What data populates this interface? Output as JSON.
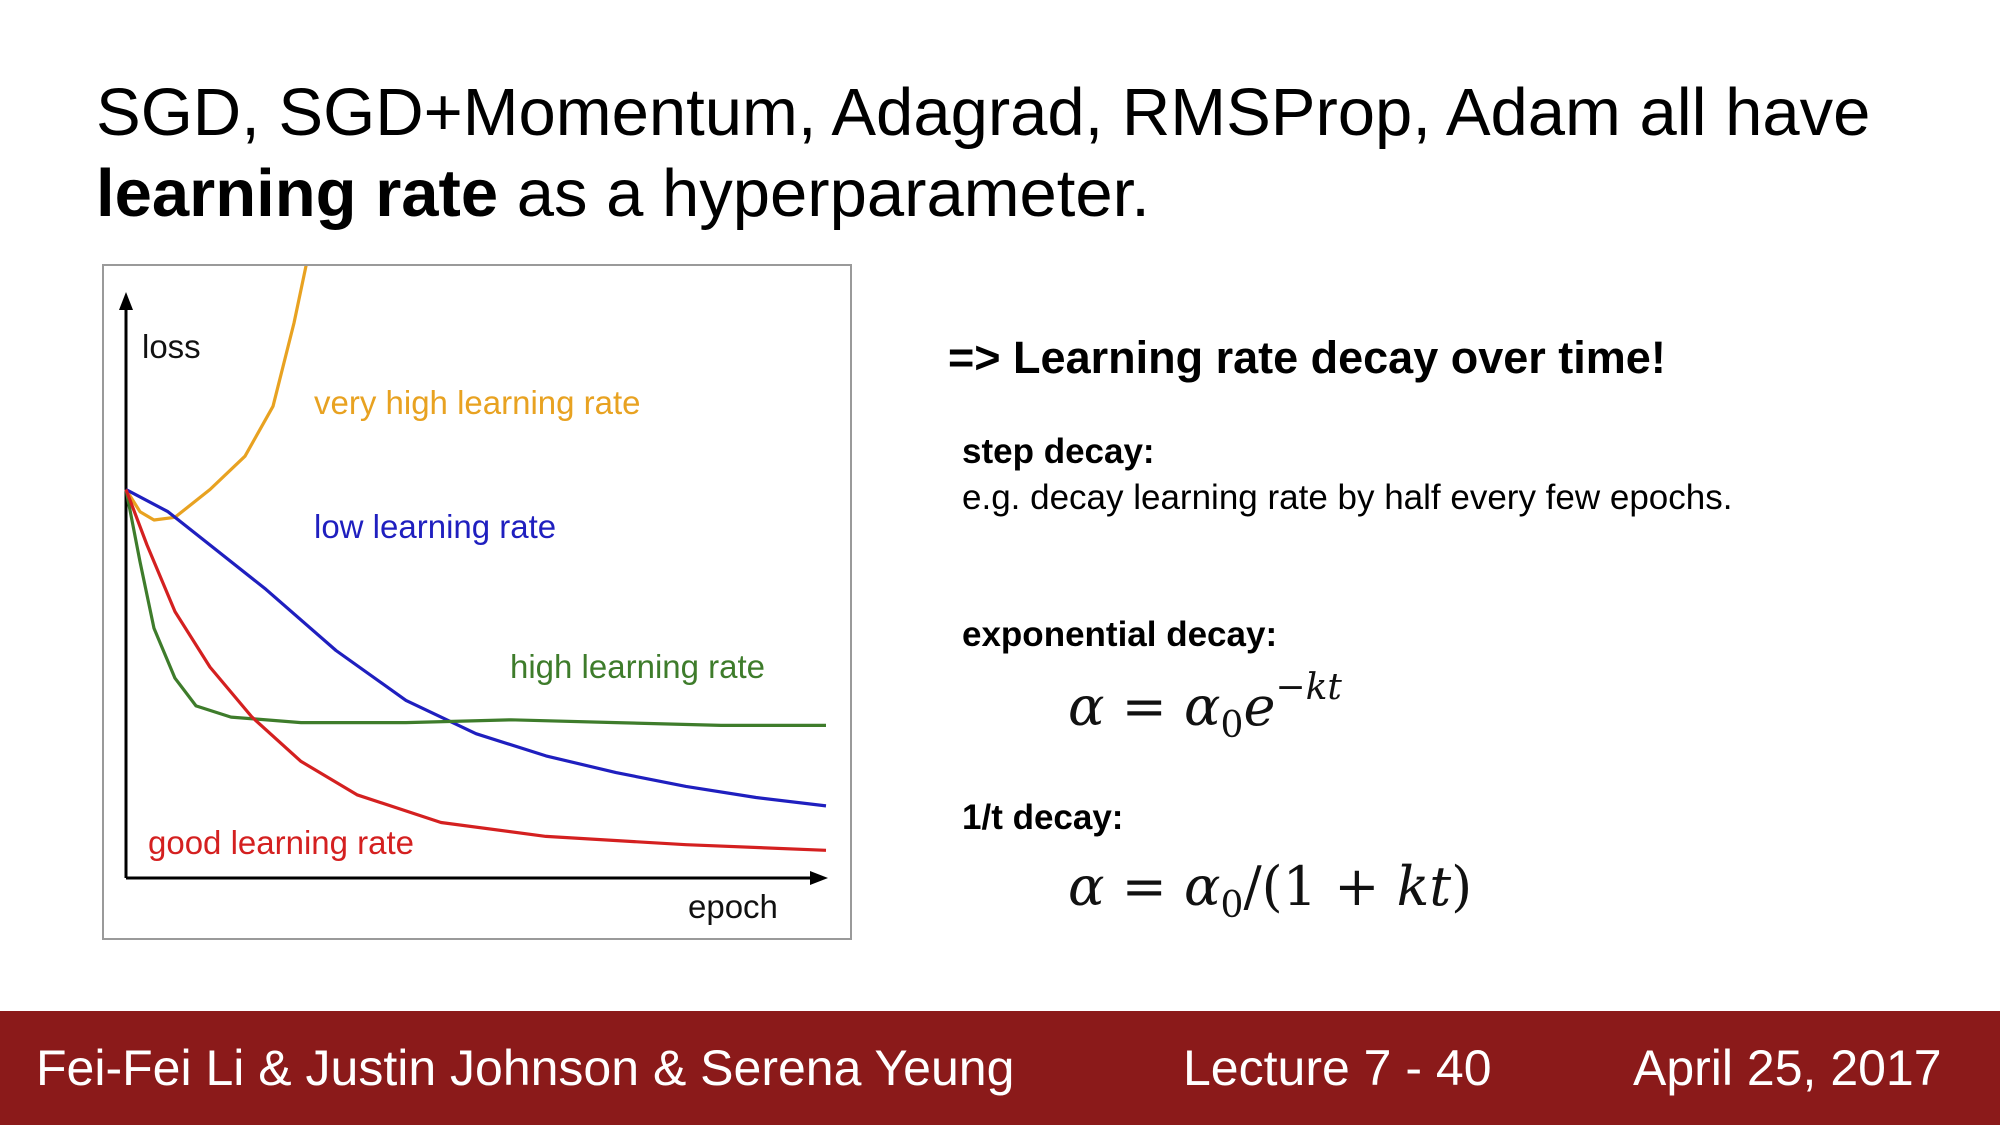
{
  "slide": {
    "title_part1": "SGD, SGD+Momentum, Adagrad, RMSProp, Adam all have",
    "title_bold": "learning rate",
    "title_part2": " as a hyperparameter."
  },
  "chart_data": {
    "type": "line",
    "ylabel": "loss",
    "xlabel": "epoch",
    "series": [
      {
        "name": "very high learning rate",
        "color": "#e8a221",
        "values": [
          [
            0,
            0.7
          ],
          [
            0.02,
            0.66
          ],
          [
            0.04,
            0.645
          ],
          [
            0.07,
            0.65
          ],
          [
            0.12,
            0.7
          ],
          [
            0.17,
            0.76
          ],
          [
            0.21,
            0.85
          ],
          [
            0.24,
            1.0
          ],
          [
            0.26,
            1.12
          ]
        ]
      },
      {
        "name": "low learning rate",
        "color": "#1f1fbf",
        "values": [
          [
            0,
            0.7
          ],
          [
            0.06,
            0.66
          ],
          [
            0.12,
            0.6
          ],
          [
            0.2,
            0.52
          ],
          [
            0.3,
            0.41
          ],
          [
            0.4,
            0.32
          ],
          [
            0.5,
            0.26
          ],
          [
            0.6,
            0.22
          ],
          [
            0.7,
            0.19
          ],
          [
            0.8,
            0.165
          ],
          [
            0.9,
            0.145
          ],
          [
            1.0,
            0.13
          ]
        ]
      },
      {
        "name": "high learning rate",
        "color": "#3e7c2b",
        "values": [
          [
            0,
            0.7
          ],
          [
            0.02,
            0.57
          ],
          [
            0.04,
            0.45
          ],
          [
            0.07,
            0.36
          ],
          [
            0.1,
            0.31
          ],
          [
            0.15,
            0.29
          ],
          [
            0.25,
            0.28
          ],
          [
            0.4,
            0.28
          ],
          [
            0.55,
            0.285
          ],
          [
            0.7,
            0.28
          ],
          [
            0.85,
            0.275
          ],
          [
            1.0,
            0.275
          ]
        ]
      },
      {
        "name": "good learning rate",
        "color": "#d42020",
        "values": [
          [
            0,
            0.7
          ],
          [
            0.03,
            0.6
          ],
          [
            0.07,
            0.48
          ],
          [
            0.12,
            0.38
          ],
          [
            0.18,
            0.29
          ],
          [
            0.25,
            0.21
          ],
          [
            0.33,
            0.15
          ],
          [
            0.45,
            0.1
          ],
          [
            0.6,
            0.075
          ],
          [
            0.8,
            0.06
          ],
          [
            1.0,
            0.05
          ]
        ]
      }
    ]
  },
  "decay": {
    "heading": "=> Learning rate decay over time!",
    "step_title": "step decay:",
    "step_text": "e.g. decay learning rate by half every few epochs.",
    "exp_title": "exponential decay:",
    "inv_title": "1/t decay:"
  },
  "footer": {
    "authors": "Fei-Fei Li & Justin Johnson & Serena Yeung",
    "lecture": "Lecture 7 - 40",
    "date": "April 25, 2017",
    "bg_color": "#8b1a1a"
  }
}
